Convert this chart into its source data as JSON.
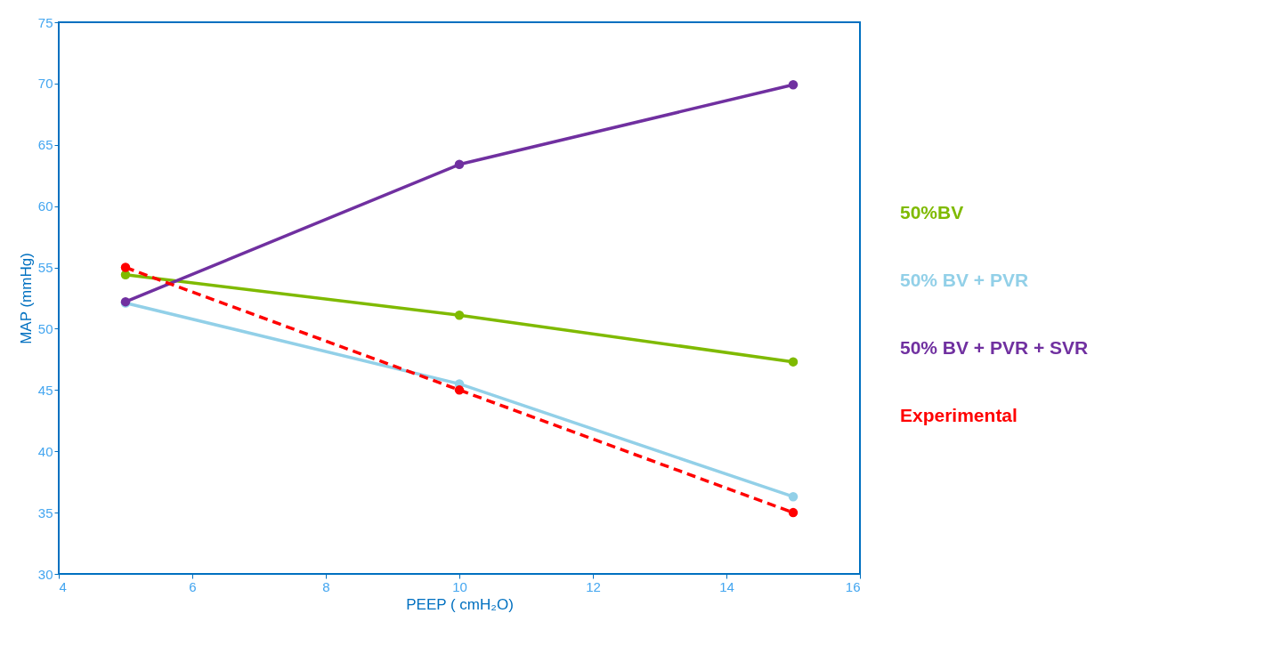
{
  "chart_data": {
    "type": "line",
    "xlabel": "PEEP ( cmH₂O)",
    "ylabel": "MAP (mmHg)",
    "xlim": [
      4,
      16
    ],
    "xticks": [
      4,
      6,
      8,
      10,
      12,
      14,
      16
    ],
    "ylim": [
      30,
      75
    ],
    "yticks": [
      30,
      35,
      40,
      45,
      50,
      55,
      60,
      65,
      70,
      75
    ],
    "x": [
      5,
      10,
      15
    ],
    "marker": "circle",
    "grid": false,
    "legend": "right",
    "series": [
      {
        "name": "50%BV",
        "color": "#7fba00",
        "values": [
          54.4,
          51.1,
          47.3
        ]
      },
      {
        "name": "50% BV + PVR",
        "color": "#92d0e8",
        "values": [
          52.1,
          45.5,
          36.3
        ]
      },
      {
        "name": "50% BV + PVR + SVR",
        "color": "#7030a0",
        "values": [
          52.2,
          63.4,
          69.9
        ]
      },
      {
        "name": "Experimental",
        "color": "#ff0000",
        "values": [
          55.0,
          45.0,
          35.0
        ],
        "line_style": "dashed"
      }
    ]
  }
}
